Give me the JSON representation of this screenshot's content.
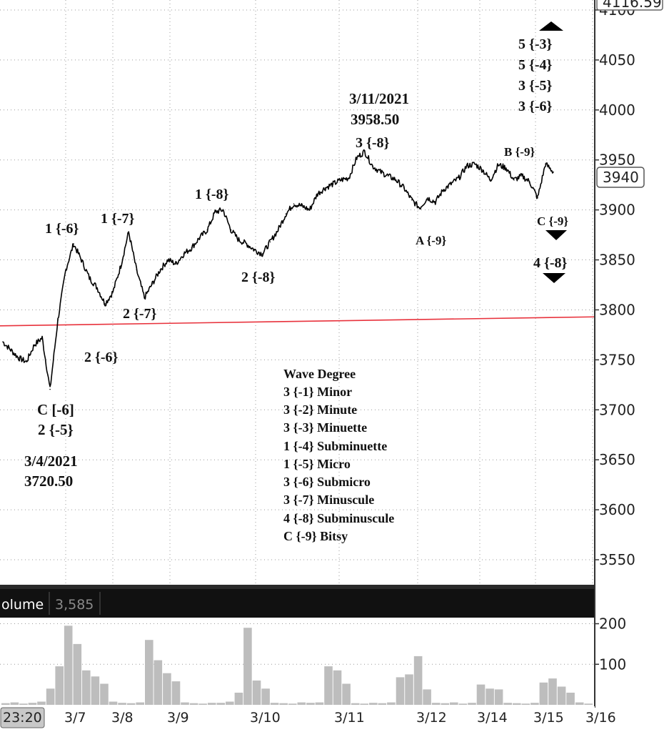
{
  "chart_data": [
    {
      "type": "line",
      "panel": "price",
      "ylim": [
        3525,
        4110
      ],
      "y_ticks": [
        4100,
        4050,
        4000,
        3950,
        3900,
        3850,
        3800,
        3750,
        3700,
        3650,
        3600,
        3550
      ],
      "y_tick_labels": [
        "4100",
        "4050",
        "4000",
        "3950",
        "3900",
        "3850",
        "3800",
        "3750",
        "3700",
        "3650",
        "3600",
        "3550"
      ],
      "y_max_label": "4116.59",
      "last_price_label": "3940",
      "last_price": 3940,
      "grid": true,
      "series": [
        {
          "x": [
            0,
            2,
            4,
            6,
            8,
            10,
            12,
            14,
            16,
            18,
            20,
            22,
            24,
            26,
            28,
            30,
            32,
            34,
            36,
            38,
            40,
            42,
            44,
            46,
            48,
            50,
            52,
            54,
            56,
            58,
            60,
            62,
            64,
            66,
            68,
            70,
            72,
            74,
            76,
            78,
            80,
            82,
            84,
            86,
            88,
            90,
            92,
            94,
            96,
            98,
            100,
            102,
            104,
            106,
            108,
            110,
            112,
            114,
            116,
            118,
            120,
            122,
            124,
            126,
            128,
            130,
            132,
            134,
            136,
            138,
            140
          ],
          "values": [
            3768,
            3760,
            3752,
            3748,
            3765,
            3772,
            3720.5,
            3790,
            3840,
            3866,
            3850,
            3832,
            3822,
            3806,
            3818,
            3844,
            3878,
            3840,
            3812,
            3826,
            3840,
            3850,
            3846,
            3856,
            3862,
            3872,
            3880,
            3898,
            3900,
            3880,
            3870,
            3866,
            3860,
            3856,
            3868,
            3880,
            3896,
            3906,
            3904,
            3900,
            3916,
            3922,
            3926,
            3930,
            3932,
            3952,
            3958.5,
            3944,
            3938,
            3934,
            3930,
            3922,
            3910,
            3902,
            3912,
            3908,
            3920,
            3926,
            3932,
            3944,
            3946,
            3940,
            3930,
            3945,
            3942,
            3930,
            3934,
            3928,
            3912,
            3946,
            3938
          ]
        }
      ],
      "reference_line": {
        "values": [
          3784,
          3793
        ],
        "color": "#e8323c"
      },
      "x_tick_labels": [
        "23:20",
        "3/7",
        "3/8",
        "3/9",
        "3/10",
        "3/11",
        "3/12",
        "3/14",
        "3/15",
        "3/16"
      ]
    },
    {
      "type": "bar",
      "panel": "volume",
      "title": "olume",
      "current_value_label": "3,585",
      "ylim": [
        0,
        215
      ],
      "y_ticks": [
        200,
        100
      ],
      "y_tick_labels": [
        "200",
        "100"
      ],
      "values": [
        4,
        6,
        3,
        5,
        8,
        40,
        95,
        195,
        150,
        85,
        70,
        52,
        8,
        5,
        4,
        6,
        160,
        110,
        78,
        58,
        6,
        4,
        3,
        5,
        5,
        8,
        30,
        190,
        60,
        40,
        5,
        4,
        3,
        6,
        5,
        6,
        95,
        85,
        52,
        4,
        3,
        5,
        4,
        6,
        68,
        75,
        120,
        38,
        5,
        4,
        6,
        3,
        5,
        50,
        40,
        38,
        5,
        4,
        3,
        5,
        55,
        65,
        45,
        30,
        6,
        3
      ],
      "color": "#bdbdbd"
    }
  ],
  "annotations": {
    "c_minus6": "C [-6]",
    "two_minus5": "2 {-5}",
    "low_date": "3/4/2021",
    "low_price": "3720.50",
    "one_minus6": "1 {-6}",
    "two_minus6": "2 {-6}",
    "one_minus7": "1 {-7}",
    "two_minus7": "2 {-7}",
    "one_minus8": "1 {-8}",
    "two_minus8": "2 {-8}",
    "high_date": "3/11/2021",
    "high_price": "3958.50",
    "three_minus8": "3 {-8}",
    "a_minus9": "A {-9}",
    "b_minus9": "B {-9}",
    "c_minus9": "C {-9}",
    "four_minus8": "4 {-8}",
    "stack": [
      "5 {-3}",
      "5 {-4}",
      "3 {-5}",
      "3 {-6}"
    ]
  },
  "legend": {
    "title": "Wave Degree",
    "items": [
      "3 {-1} Minor",
      "3 {-2} Minute",
      "3 {-3} Minuette",
      "1 {-4} Subminuette",
      "1 {-5} Micro",
      "3 {-6} Submicro",
      "3 {-7} Minuscule",
      "4 {-8} Subminuscule",
      "C {-9} Bitsy"
    ]
  }
}
